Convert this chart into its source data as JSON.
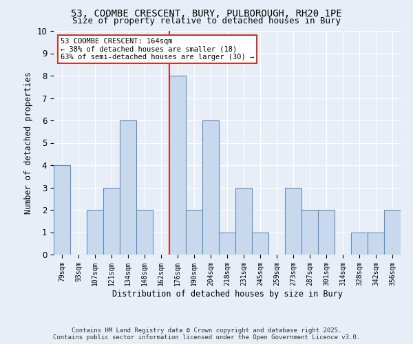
{
  "title1": "53, COOMBE CRESCENT, BURY, PULBOROUGH, RH20 1PE",
  "title2": "Size of property relative to detached houses in Bury",
  "xlabel": "Distribution of detached houses by size in Bury",
  "ylabel": "Number of detached properties",
  "categories": [
    "79sqm",
    "93sqm",
    "107sqm",
    "121sqm",
    "134sqm",
    "148sqm",
    "162sqm",
    "176sqm",
    "190sqm",
    "204sqm",
    "218sqm",
    "231sqm",
    "245sqm",
    "259sqm",
    "273sqm",
    "287sqm",
    "301sqm",
    "314sqm",
    "328sqm",
    "342sqm",
    "356sqm"
  ],
  "values": [
    4,
    0,
    2,
    3,
    6,
    2,
    0,
    8,
    2,
    6,
    1,
    3,
    1,
    0,
    3,
    2,
    2,
    0,
    1,
    1,
    2
  ],
  "bar_color": "#c9d9ed",
  "bar_edge_color": "#5b8ec4",
  "vline_color": "#c0392b",
  "annotation_text": "53 COOMBE CRESCENT: 164sqm\n← 38% of detached houses are smaller (18)\n63% of semi-detached houses are larger (30) →",
  "annotation_box_color": "white",
  "annotation_box_edge": "#c0392b",
  "ylim": [
    0,
    10
  ],
  "yticks": [
    0,
    1,
    2,
    3,
    4,
    5,
    6,
    7,
    8,
    9,
    10
  ],
  "footer1": "Contains HM Land Registry data © Crown copyright and database right 2025.",
  "footer2": "Contains public sector information licensed under the Open Government Licence v3.0.",
  "bg_color": "#e8eef8",
  "plot_bg_color": "#e8eef8"
}
